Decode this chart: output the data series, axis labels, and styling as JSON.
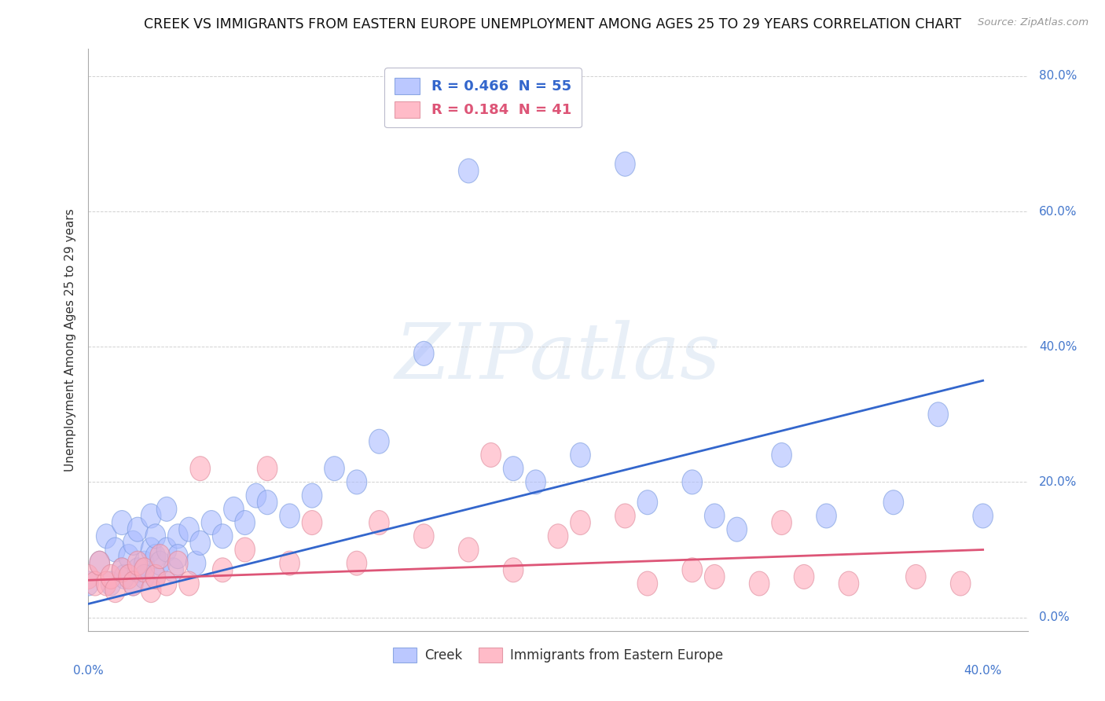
{
  "title": "CREEK VS IMMIGRANTS FROM EASTERN EUROPE UNEMPLOYMENT AMONG AGES 25 TO 29 YEARS CORRELATION CHART",
  "source": "Source: ZipAtlas.com",
  "ylabel": "Unemployment Among Ages 25 to 29 years",
  "y_ticks": [
    0.0,
    0.2,
    0.4,
    0.6,
    0.8
  ],
  "y_tick_labels": [
    "0.0%",
    "20.0%",
    "40.0%",
    "60.0%",
    "80.0%"
  ],
  "x_lim": [
    0.0,
    0.42
  ],
  "y_lim": [
    -0.02,
    0.84
  ],
  "creek_color": "#aabbff",
  "eastern_europe_color": "#ffaabb",
  "creek_edge_color": "#7799dd",
  "eastern_europe_edge_color": "#dd8899",
  "creek_line_color": "#3366cc",
  "eastern_europe_line_color": "#dd5577",
  "legend_creek_color": "#aabbff",
  "legend_ee_color": "#ffaabb",
  "legend_text_color": "#3366cc",
  "watermark_text": "ZIPatlas",
  "creek_label": "Creek",
  "ee_label": "Immigrants from Eastern Europe",
  "creek_R": "0.466",
  "creek_N": "55",
  "ee_R": "0.184",
  "ee_N": "41",
  "creek_scatter_x": [
    0.0,
    0.005,
    0.008,
    0.01,
    0.012,
    0.015,
    0.015,
    0.016,
    0.018,
    0.02,
    0.02,
    0.022,
    0.022,
    0.025,
    0.025,
    0.028,
    0.028,
    0.03,
    0.03,
    0.03,
    0.032,
    0.035,
    0.035,
    0.038,
    0.04,
    0.04,
    0.045,
    0.048,
    0.05,
    0.055,
    0.06,
    0.065,
    0.07,
    0.075,
    0.08,
    0.09,
    0.1,
    0.11,
    0.12,
    0.13,
    0.15,
    0.17,
    0.19,
    0.2,
    0.22,
    0.24,
    0.25,
    0.27,
    0.28,
    0.29,
    0.31,
    0.33,
    0.36,
    0.38,
    0.4
  ],
  "creek_scatter_y": [
    0.05,
    0.08,
    0.12,
    0.05,
    0.1,
    0.07,
    0.14,
    0.06,
    0.09,
    0.05,
    0.11,
    0.07,
    0.13,
    0.08,
    0.06,
    0.1,
    0.15,
    0.06,
    0.09,
    0.12,
    0.08,
    0.1,
    0.16,
    0.07,
    0.12,
    0.09,
    0.13,
    0.08,
    0.11,
    0.14,
    0.12,
    0.16,
    0.14,
    0.18,
    0.17,
    0.15,
    0.18,
    0.22,
    0.2,
    0.26,
    0.39,
    0.66,
    0.22,
    0.2,
    0.24,
    0.67,
    0.17,
    0.2,
    0.15,
    0.13,
    0.24,
    0.15,
    0.17,
    0.3,
    0.15
  ],
  "ee_scatter_x": [
    0.0,
    0.003,
    0.005,
    0.008,
    0.01,
    0.012,
    0.015,
    0.018,
    0.02,
    0.022,
    0.025,
    0.028,
    0.03,
    0.032,
    0.035,
    0.04,
    0.045,
    0.05,
    0.06,
    0.07,
    0.08,
    0.09,
    0.1,
    0.12,
    0.13,
    0.15,
    0.17,
    0.18,
    0.19,
    0.21,
    0.22,
    0.24,
    0.25,
    0.27,
    0.28,
    0.3,
    0.31,
    0.32,
    0.34,
    0.37,
    0.39
  ],
  "ee_scatter_y": [
    0.06,
    0.05,
    0.08,
    0.05,
    0.06,
    0.04,
    0.07,
    0.06,
    0.05,
    0.08,
    0.07,
    0.04,
    0.06,
    0.09,
    0.05,
    0.08,
    0.05,
    0.22,
    0.07,
    0.1,
    0.22,
    0.08,
    0.14,
    0.08,
    0.14,
    0.12,
    0.1,
    0.24,
    0.07,
    0.12,
    0.14,
    0.15,
    0.05,
    0.07,
    0.06,
    0.05,
    0.14,
    0.06,
    0.05,
    0.06,
    0.05
  ],
  "creek_line_x": [
    0.0,
    0.4
  ],
  "creek_line_y": [
    0.02,
    0.35
  ],
  "ee_line_x": [
    0.0,
    0.4
  ],
  "ee_line_y": [
    0.055,
    0.1
  ]
}
